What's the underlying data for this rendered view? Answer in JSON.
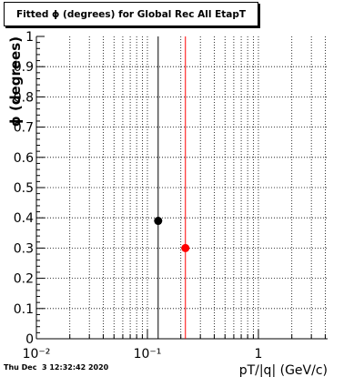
{
  "chart_data": {
    "type": "scatter",
    "title": "Fitted ϕ (degrees) for Global Rec All EtapT",
    "xlabel": "pT/|q| (GeV/c)",
    "ylabel": "ϕ (degrees)",
    "xscale": "log",
    "xlim": [
      0.01,
      4.2
    ],
    "ylim": [
      0,
      1
    ],
    "grid": true,
    "x_ticks": [
      {
        "value": 0.01,
        "label": "10⁻²"
      },
      {
        "value": 0.1,
        "label": "10⁻¹"
      },
      {
        "value": 1,
        "label": "1"
      }
    ],
    "y_ticks": [
      {
        "value": 0,
        "label": "0"
      },
      {
        "value": 0.1,
        "label": "0.1"
      },
      {
        "value": 0.2,
        "label": "0.2"
      },
      {
        "value": 0.3,
        "label": "0.3"
      },
      {
        "value": 0.4,
        "label": "0.4"
      },
      {
        "value": 0.5,
        "label": "0.5"
      },
      {
        "value": 0.6,
        "label": "0.6"
      },
      {
        "value": 0.7,
        "label": "0.7"
      },
      {
        "value": 0.8,
        "label": "0.8"
      },
      {
        "value": 0.9,
        "label": "0.9"
      },
      {
        "value": 1,
        "label": "1"
      }
    ],
    "series": [
      {
        "color": "#000000",
        "x": [
          0.125
        ],
        "y": [
          0.39
        ],
        "vline_x": 0.125
      },
      {
        "color": "#ff0000",
        "x": [
          0.22
        ],
        "y": [
          0.3
        ],
        "vline_x": 0.22
      }
    ]
  },
  "footer": {
    "timestamp": "Thu Dec  3 12:32:42 2020"
  }
}
